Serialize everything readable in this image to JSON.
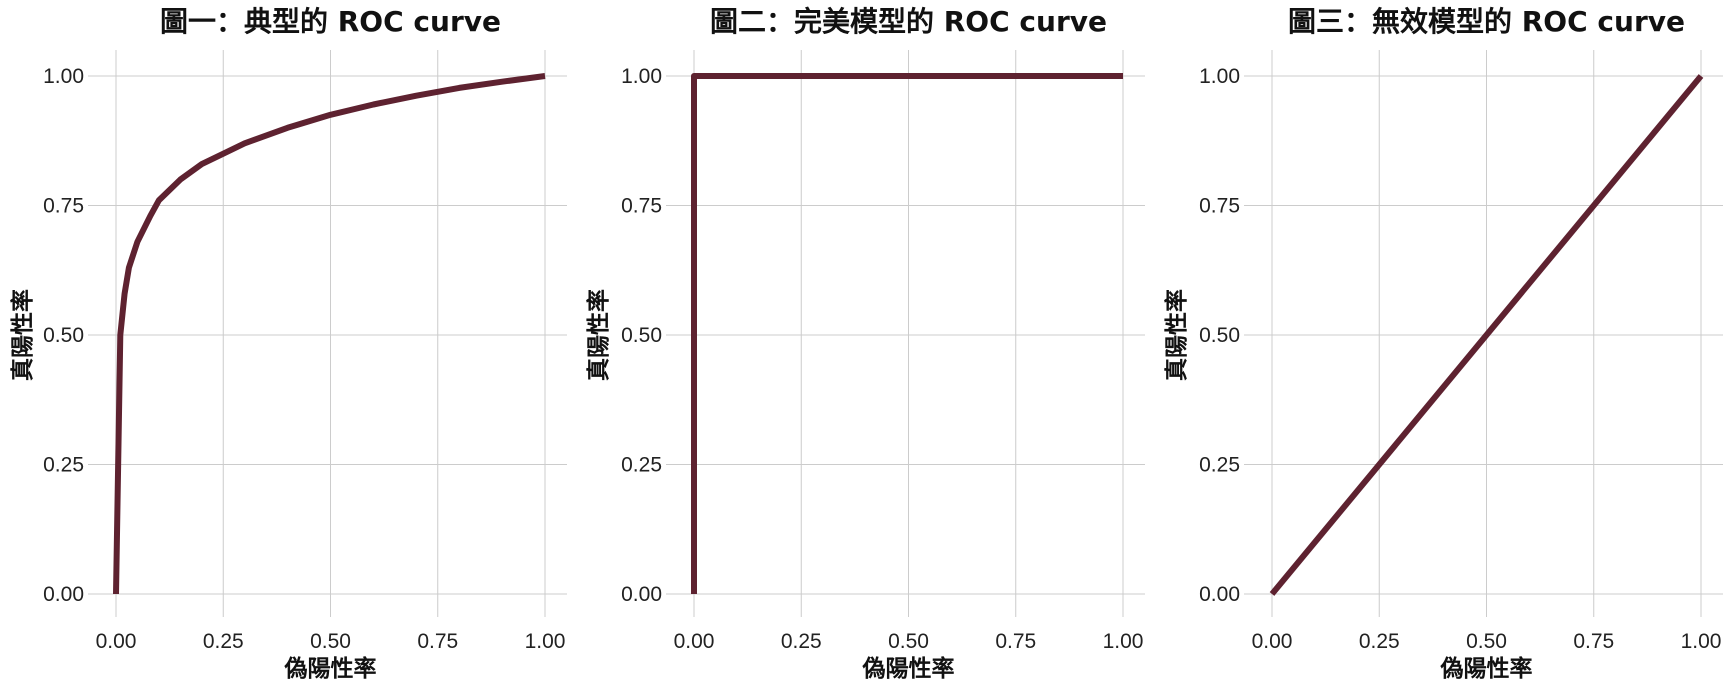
{
  "colors": {
    "curve": "#5e2230",
    "grid": "#cccccc"
  },
  "chart_data": [
    {
      "type": "line",
      "title": "圖一：典型的 ROC curve",
      "xlabel": "偽陽性率",
      "ylabel": "真陽性率",
      "xlim": [
        0,
        1
      ],
      "ylim": [
        0,
        1
      ],
      "xticks": [
        "0.00",
        "0.25",
        "0.50",
        "0.75",
        "1.00"
      ],
      "yticks": [
        "0.00",
        "0.25",
        "0.50",
        "0.75",
        "1.00"
      ],
      "grid": true,
      "series": [
        {
          "x": [
            0.0,
            0.01,
            0.02,
            0.03,
            0.05,
            0.08,
            0.1,
            0.15,
            0.2,
            0.25,
            0.3,
            0.4,
            0.5,
            0.6,
            0.7,
            0.8,
            0.9,
            1.0
          ],
          "y": [
            0.0,
            0.5,
            0.58,
            0.63,
            0.68,
            0.73,
            0.76,
            0.8,
            0.83,
            0.85,
            0.87,
            0.9,
            0.925,
            0.945,
            0.962,
            0.977,
            0.989,
            1.0
          ]
        }
      ]
    },
    {
      "type": "line",
      "title": "圖二：完美模型的 ROC curve",
      "xlabel": "偽陽性率",
      "ylabel": "真陽性率",
      "xlim": [
        0,
        1
      ],
      "ylim": [
        0,
        1
      ],
      "xticks": [
        "0.00",
        "0.25",
        "0.50",
        "0.75",
        "1.00"
      ],
      "yticks": [
        "0.00",
        "0.25",
        "0.50",
        "0.75",
        "1.00"
      ],
      "grid": true,
      "series": [
        {
          "x": [
            0.0,
            0.0,
            1.0
          ],
          "y": [
            0.0,
            1.0,
            1.0
          ]
        }
      ]
    },
    {
      "type": "line",
      "title": "圖三：無效模型的 ROC curve",
      "xlabel": "偽陽性率",
      "ylabel": "真陽性率",
      "xlim": [
        0,
        1
      ],
      "ylim": [
        0,
        1
      ],
      "xticks": [
        "0.00",
        "0.25",
        "0.50",
        "0.75",
        "1.00"
      ],
      "yticks": [
        "0.00",
        "0.25",
        "0.50",
        "0.75",
        "1.00"
      ],
      "grid": true,
      "series": [
        {
          "x": [
            0.0,
            1.0
          ],
          "y": [
            0.0,
            1.0
          ]
        }
      ]
    }
  ]
}
